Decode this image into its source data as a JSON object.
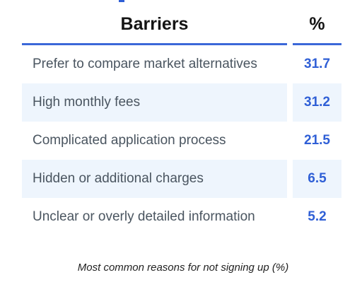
{
  "colors": {
    "accent": "#2f5fd6",
    "row_shade": "#eef5fd",
    "header_rule": "#3b68d8",
    "label_text": "#4a5560"
  },
  "table": {
    "header": {
      "label": "Barriers",
      "value": "%"
    }
  },
  "chart_data": {
    "type": "table",
    "columns": [
      "Barriers",
      "%"
    ],
    "rows": [
      {
        "label": "Prefer to compare market alternatives",
        "value": "31.7"
      },
      {
        "label": "High monthly fees",
        "value": "31.2"
      },
      {
        "label": "Complicated application process",
        "value": "21.5"
      },
      {
        "label": "Hidden or additional charges",
        "value": "6.5"
      },
      {
        "label": "Unclear or overly detailed information",
        "value": "5.2"
      }
    ],
    "caption": "Most common reasons for not signing up (%)"
  }
}
